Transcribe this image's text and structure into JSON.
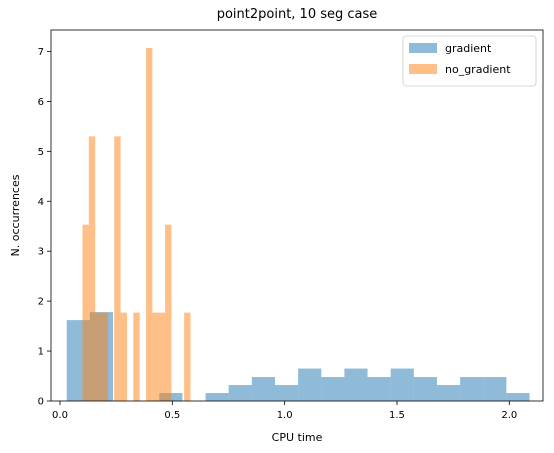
{
  "chart_data": {
    "type": "histogram",
    "title": "point2point, 10 seg case",
    "xlabel": "CPU time",
    "ylabel": "N. occurrences",
    "xlim": [
      -0.04,
      2.15
    ],
    "ylim": [
      0,
      7.43
    ],
    "xticks": [
      0.0,
      0.5,
      1.0,
      1.5,
      2.0
    ],
    "xtick_labels": [
      "0.0",
      "0.5",
      "1.0",
      "1.5",
      "2.0"
    ],
    "yticks": [
      0,
      1,
      2,
      3,
      4,
      5,
      6,
      7
    ],
    "ytick_labels": [
      "0",
      "1",
      "2",
      "3",
      "4",
      "5",
      "6",
      "7"
    ],
    "legend_position": "top-right",
    "series": [
      {
        "name": "gradient",
        "color": "#1f77b4",
        "alpha": 0.5,
        "bin_edges": [
          0.03,
          0.133,
          0.236,
          0.339,
          0.442,
          0.545,
          0.648,
          0.751,
          0.854,
          0.957,
          1.06,
          1.163,
          1.266,
          1.369,
          1.472,
          1.575,
          1.678,
          1.781,
          1.884,
          1.987,
          2.09
        ],
        "counts": [
          1.62,
          1.78,
          0.0,
          0.0,
          0.16,
          0.0,
          0.16,
          0.32,
          0.48,
          0.32,
          0.65,
          0.48,
          0.65,
          0.48,
          0.65,
          0.48,
          0.32,
          0.48,
          0.48,
          0.16
        ]
      },
      {
        "name": "no_gradient",
        "color": "#ff7f0e",
        "alpha": 0.5,
        "bin_edges": [
          0.1,
          0.1283,
          0.1566,
          0.1849,
          0.2132,
          0.2415,
          0.2698,
          0.2981,
          0.3264,
          0.3547,
          0.383,
          0.4113,
          0.4396,
          0.4679,
          0.4962,
          0.5245,
          0.5528,
          0.581
        ],
        "counts": [
          3.53,
          5.3,
          1.77,
          1.77,
          0.0,
          5.3,
          1.77,
          0.0,
          1.77,
          0.0,
          7.07,
          1.77,
          1.77,
          3.53,
          0.0,
          0.0,
          1.77
        ]
      }
    ]
  }
}
